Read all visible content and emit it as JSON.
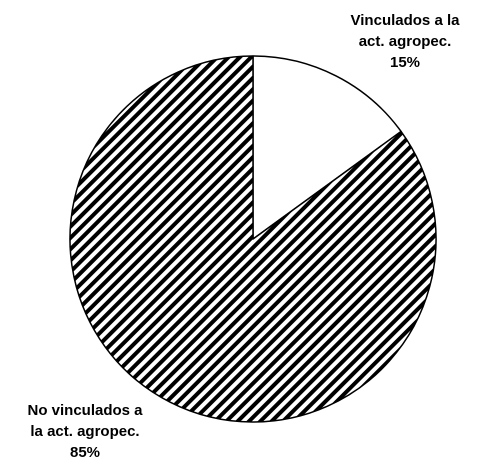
{
  "chart_data": {
    "type": "pie",
    "title": "",
    "slices": [
      {
        "label_lines": [
          "Vinculados a la",
          "act. agropec."
        ],
        "percent_label": "15%",
        "value": 15,
        "fill": "#ffffff"
      },
      {
        "label_lines": [
          "No vinculados a",
          "la act. agropec."
        ],
        "percent_label": "85%",
        "value": 85,
        "fill": "hatch"
      }
    ],
    "colors": {
      "outline": "#000000",
      "hatch": "#000000",
      "background": "#ffffff"
    }
  }
}
